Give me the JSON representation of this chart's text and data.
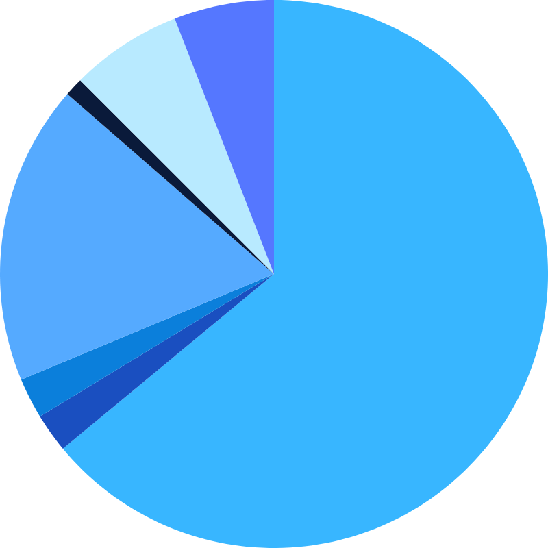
{
  "chart_data": {
    "type": "pie",
    "categories": [
      null,
      null,
      null,
      null,
      null,
      null,
      null
    ],
    "values": [
      64,
      2.3,
      2.4,
      17.7,
      1.1,
      6.6,
      5.9
    ],
    "colors": [
      "#38b6ff",
      "#1a4fc0",
      "#0b7fdb",
      "#55aaff",
      "#0a1a3a",
      "#b8eaff",
      "#5577ff"
    ]
  }
}
